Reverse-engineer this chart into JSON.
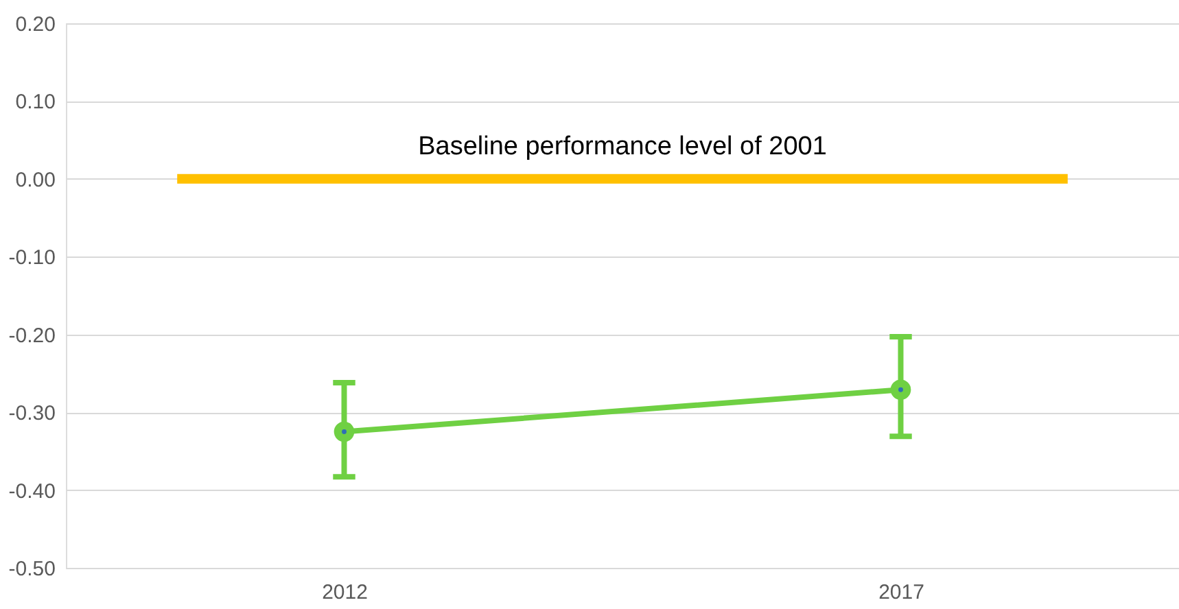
{
  "chart_data": {
    "type": "line",
    "categories": [
      "2012",
      "2017"
    ],
    "series": [
      {
        "color": "#6fd043",
        "values": [
          -0.325,
          -0.271
        ],
        "errors": [
          [
            -0.383,
            -0.262
          ],
          [
            -0.331,
            -0.203
          ]
        ]
      }
    ],
    "ylim": [
      -0.5,
      0.2
    ],
    "yticks": [
      {
        "value": -0.5,
        "label": "-0.50"
      },
      {
        "value": -0.4,
        "label": "-0.40"
      },
      {
        "value": -0.3,
        "label": "-0.30"
      },
      {
        "value": -0.2,
        "label": "-0.20"
      },
      {
        "value": -0.1,
        "label": "-0.10"
      },
      {
        "value": 0,
        "label": "0.00"
      },
      {
        "value": 0.1,
        "label": "0.10"
      },
      {
        "value": 0.2,
        "label": "0.20"
      }
    ],
    "ref_lines": [
      {
        "axis": "y",
        "value": 0,
        "label": "Baseline performance level of 2001",
        "color": "#ffc000"
      }
    ],
    "grid": "y",
    "marker": "circle",
    "line_style": "solid"
  }
}
